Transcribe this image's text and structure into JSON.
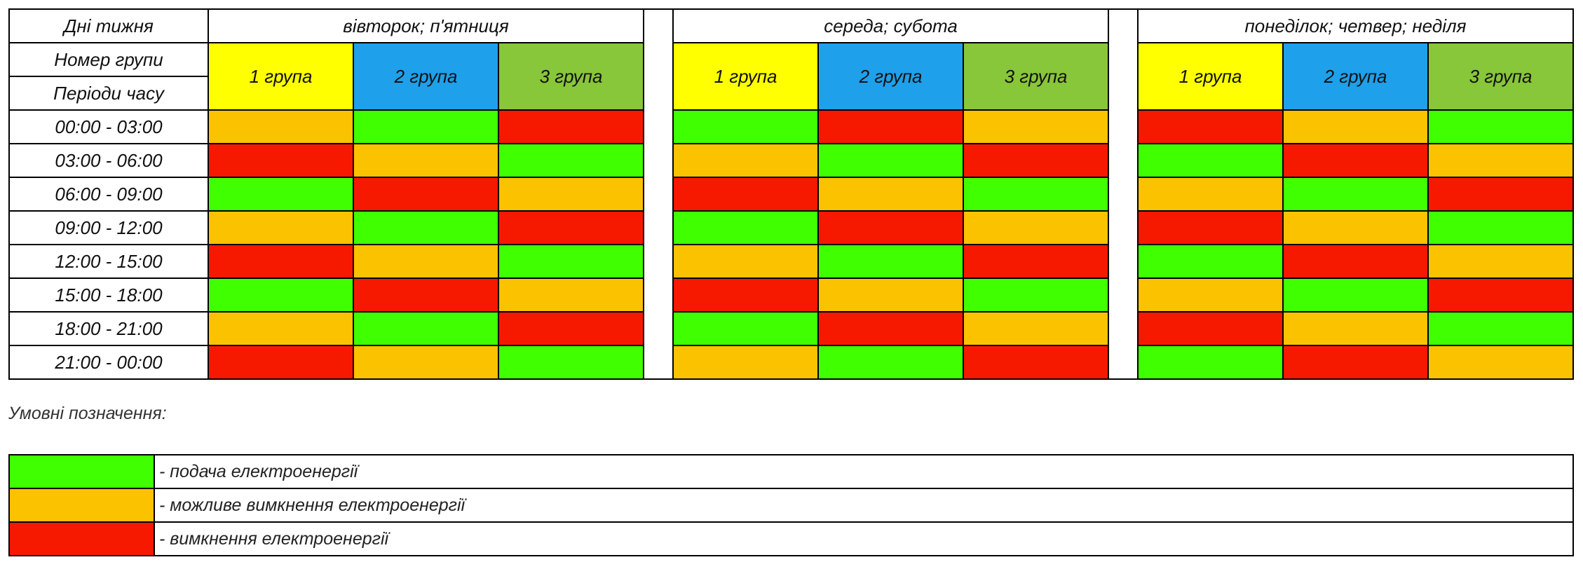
{
  "colors": {
    "on": "#3FFF00",
    "maybe": "#FBC200",
    "off": "#F71800",
    "group1": "#FFFF00",
    "group2": "#1FA0EA",
    "group3": "#88C63A"
  },
  "labels": {
    "days": "Дні тижня",
    "group_number": "Номер групи",
    "periods": "Періоди часу"
  },
  "groups": [
    "1 група",
    "2 група",
    "3 група"
  ],
  "periods": [
    "00:00 - 03:00",
    "03:00 - 06:00",
    "06:00 - 09:00",
    "09:00 - 12:00",
    "12:00 - 15:00",
    "15:00 - 18:00",
    "18:00 - 21:00",
    "21:00 - 00:00"
  ],
  "blocks": [
    {
      "days": "вівторок; п'ятниця",
      "rows": [
        [
          "maybe",
          "on",
          "off"
        ],
        [
          "off",
          "maybe",
          "on"
        ],
        [
          "on",
          "off",
          "maybe"
        ],
        [
          "maybe",
          "on",
          "off"
        ],
        [
          "off",
          "maybe",
          "on"
        ],
        [
          "on",
          "off",
          "maybe"
        ],
        [
          "maybe",
          "on",
          "off"
        ],
        [
          "off",
          "maybe",
          "on"
        ]
      ]
    },
    {
      "days": "середа; субота",
      "rows": [
        [
          "on",
          "off",
          "maybe"
        ],
        [
          "maybe",
          "on",
          "off"
        ],
        [
          "off",
          "maybe",
          "on"
        ],
        [
          "on",
          "off",
          "maybe"
        ],
        [
          "maybe",
          "on",
          "off"
        ],
        [
          "off",
          "maybe",
          "on"
        ],
        [
          "on",
          "off",
          "maybe"
        ],
        [
          "maybe",
          "on",
          "off"
        ]
      ]
    },
    {
      "days": "понеділок; четвер; неділя",
      "rows": [
        [
          "off",
          "maybe",
          "on"
        ],
        [
          "on",
          "off",
          "maybe"
        ],
        [
          "maybe",
          "on",
          "off"
        ],
        [
          "off",
          "maybe",
          "on"
        ],
        [
          "on",
          "off",
          "maybe"
        ],
        [
          "maybe",
          "on",
          "off"
        ],
        [
          "off",
          "maybe",
          "on"
        ],
        [
          "on",
          "off",
          "maybe"
        ]
      ]
    }
  ],
  "legend": {
    "title": "Умовні позначення:",
    "items": [
      {
        "status": "on",
        "text": "- подача електроенергії"
      },
      {
        "status": "maybe",
        "text": "- можливе вимкнення електроенергії"
      },
      {
        "status": "off",
        "text": "- вимкнення електроенергії"
      }
    ]
  }
}
